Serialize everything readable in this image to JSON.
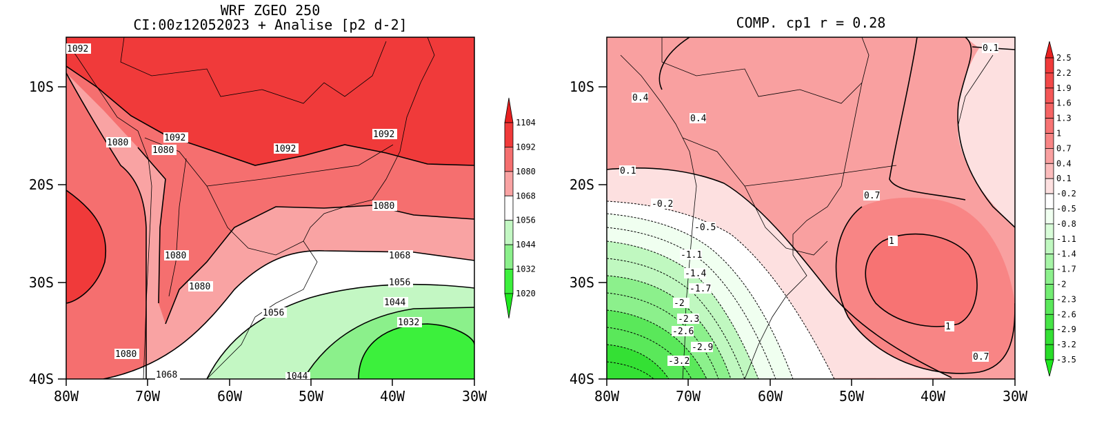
{
  "panels": [
    {
      "title_line1": "WRF ZGEO 250",
      "title_line2": "CI:00z12052023 + Analise  [p2 d-2]",
      "lon_ticks": [
        "80W",
        "70W",
        "60W",
        "50W",
        "40W",
        "30W"
      ],
      "lat_ticks": [
        "10S",
        "20S",
        "30S",
        "40S"
      ],
      "colorbar": {
        "labels": [
          "1104",
          "1092",
          "1080",
          "1068",
          "1056",
          "1044",
          "1032",
          "1020"
        ],
        "colors": [
          "#f03a3a",
          "#f56f6f",
          "#f9a3a3",
          "#ffffff",
          "#c3f7c3",
          "#8bf08b",
          "#3cf03c"
        ],
        "top_arrow": "#e82020",
        "bottom_arrow": "#1ee81e"
      },
      "contour_labels": [
        "1092",
        "1080",
        "1092",
        "1080",
        "1092",
        "1092",
        "1080",
        "1068",
        "1080",
        "1080",
        "1056",
        "1044",
        "1032",
        "1056",
        "1080",
        "1068",
        "1044"
      ]
    },
    {
      "title": "COMP. cp1  r =  0.28",
      "lon_ticks": [
        "80W",
        "70W",
        "60W",
        "50W",
        "40W",
        "30W"
      ],
      "lat_ticks": [
        "10S",
        "20S",
        "30S",
        "40S"
      ],
      "colorbar": {
        "labels": [
          "2.5",
          "2.2",
          "1.9",
          "1.6",
          "1.3",
          "1",
          "0.7",
          "0.4",
          "0.1",
          "-0.2",
          "-0.5",
          "-0.8",
          "-1.1",
          "-1.4",
          "-1.7",
          "-2",
          "-2.3",
          "-2.6",
          "-2.9",
          "-3.2",
          "-3.5"
        ],
        "colors": [
          "#f03a3a",
          "#f24848",
          "#f45656",
          "#f56464",
          "#f77373",
          "#f88585",
          "#f9a0a0",
          "#fbbcbc",
          "#fde0e0",
          "#ffffff",
          "#f0fff0",
          "#d8fcd8",
          "#c0f8c0",
          "#a6f4a6",
          "#8cf08c",
          "#72ec72",
          "#5ae85a",
          "#46e446",
          "#34e034",
          "#28dc28"
        ],
        "top_arrow": "#e82020",
        "bottom_arrow": "#1ee81e"
      },
      "contour_labels": [
        "0.4",
        "0.4",
        "0.1",
        "0.1",
        "-0.2",
        "-0.5",
        "-1.1",
        "-1.4",
        "-1.7",
        "-2",
        "-2.3",
        "-2.6",
        "-2.9",
        "-3.2",
        "0.7",
        "1",
        "1",
        "0.7"
      ]
    }
  ]
}
